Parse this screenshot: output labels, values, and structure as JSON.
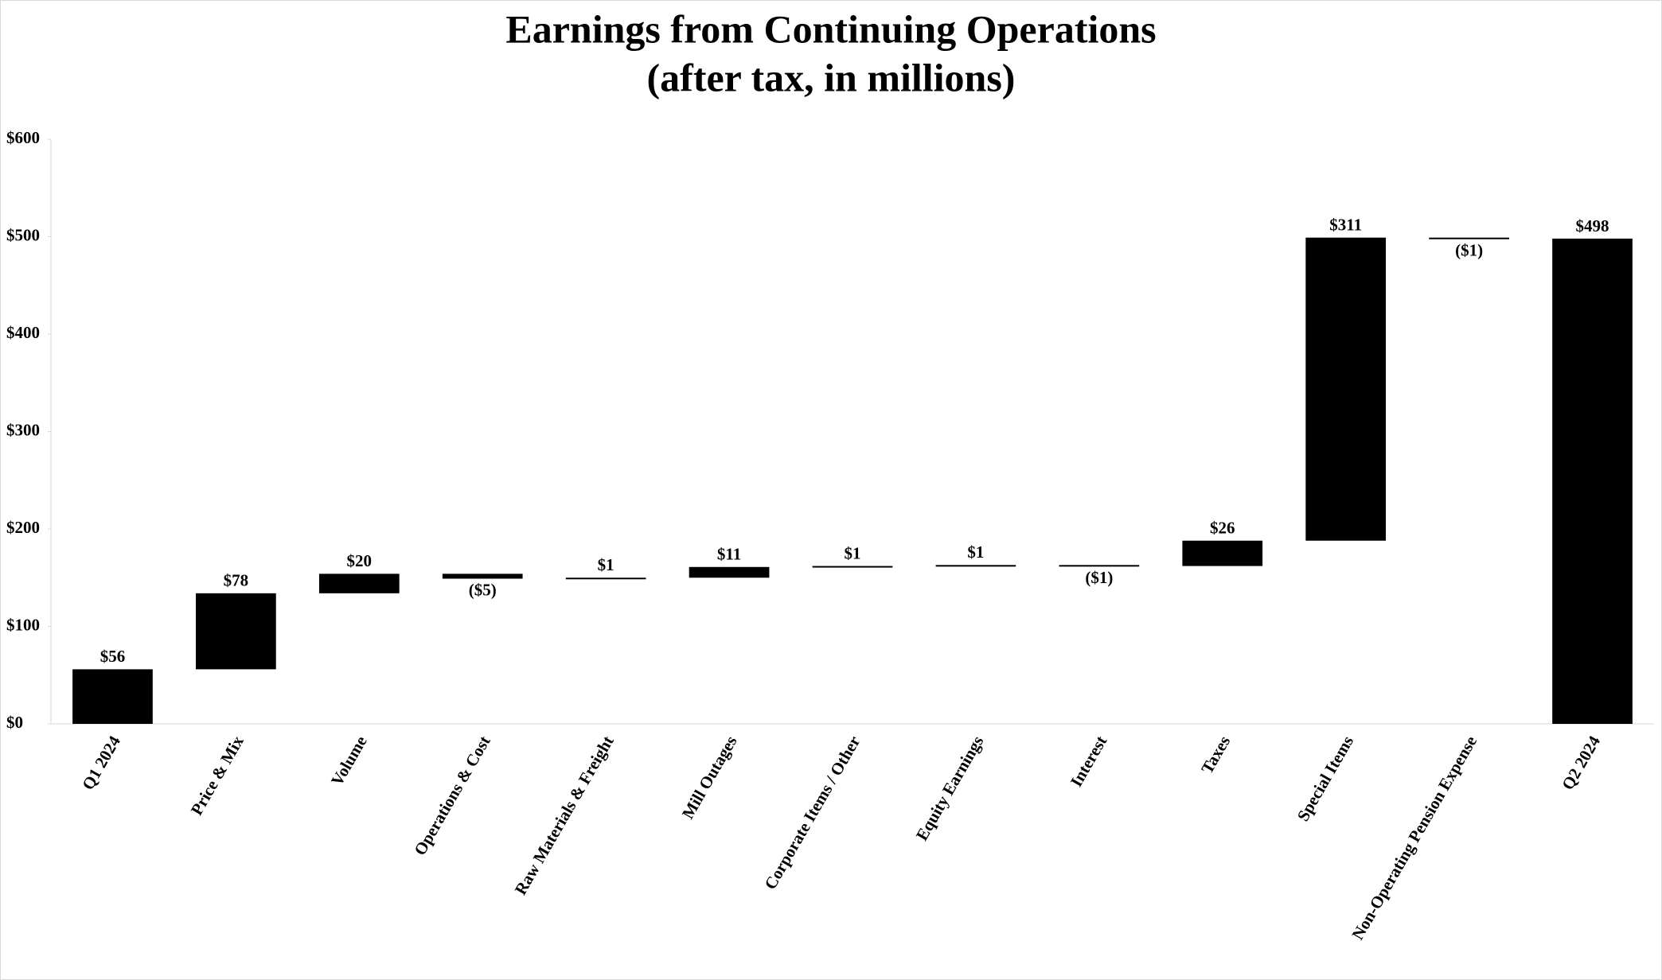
{
  "chart_data": {
    "type": "waterfall",
    "title": "Earnings from Continuing Operations",
    "subtitle": "(after tax, in millions)",
    "categories": [
      "Q1 2024",
      "Price & Mix",
      "Volume",
      "Operations & Cost",
      "Raw Materials & Freight",
      "Mill Outages",
      "Corporate Items / Other",
      "Equity Earnings",
      "Interest",
      "Taxes",
      "Special Items",
      "Non-Operating Pension Expense",
      "Q2 2024"
    ],
    "measure": [
      "total",
      "relative",
      "relative",
      "relative",
      "relative",
      "relative",
      "relative",
      "relative",
      "relative",
      "relative",
      "relative",
      "relative",
      "total"
    ],
    "values": [
      56,
      78,
      20,
      -5,
      1,
      11,
      1,
      1,
      -1,
      26,
      311,
      -1,
      498
    ],
    "value_labels": [
      "$56",
      "$78",
      "$20",
      "($5)",
      "$1",
      "$11",
      "$1",
      "$1",
      "($1)",
      "$26",
      "$311",
      "($1)",
      "$498"
    ],
    "color": "#000000",
    "ylim": [
      0,
      600
    ],
    "yticks": [
      {
        "value": 0,
        "label": "$0"
      },
      {
        "value": 100,
        "label": "$100"
      },
      {
        "value": 200,
        "label": "$200"
      },
      {
        "value": 300,
        "label": "$300"
      },
      {
        "value": 400,
        "label": "$400"
      },
      {
        "value": 500,
        "label": "$500"
      },
      {
        "value": 600,
        "label": "$600"
      }
    ],
    "grid": false
  }
}
